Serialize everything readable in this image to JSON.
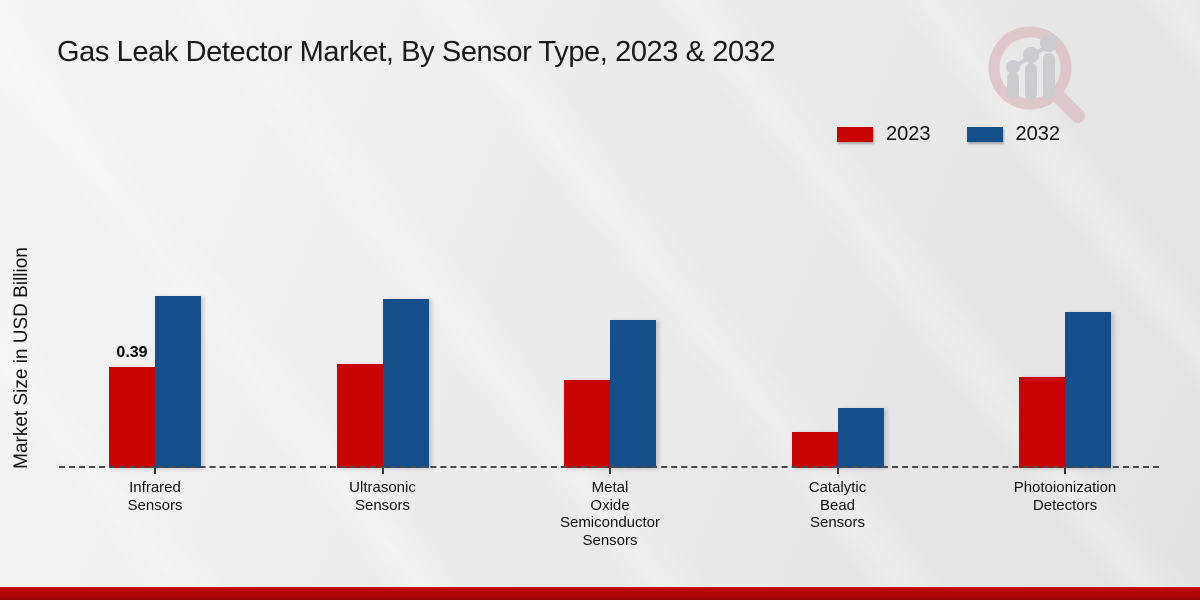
{
  "title": {
    "text": "Gas Leak Detector Market, By Sensor Type, 2023 & 2032"
  },
  "y_axis": {
    "label": "Market Size in USD Billion"
  },
  "legend": {
    "position": "top-right",
    "items": [
      {
        "label": "2023",
        "color": "#c90404"
      },
      {
        "label": "2032",
        "color": "#154f8b"
      }
    ]
  },
  "chart_data": {
    "type": "bar",
    "title": "Gas Leak Detector Market, By Sensor Type, 2023 & 2032",
    "xlabel": "",
    "ylabel": "Market Size in USD Billion",
    "categories": [
      "Infrared Sensors",
      "Ultrasonic Sensors",
      "Metal Oxide Semiconductor Sensors",
      "Catalytic Bead Sensors",
      "Photoionization Detectors"
    ],
    "category_label_lines": [
      [
        "Infrared",
        "Sensors"
      ],
      [
        "Ultrasonic",
        "Sensors"
      ],
      [
        "Metal",
        "Oxide",
        "Semiconductor",
        "Sensors"
      ],
      [
        "Catalytic",
        "Bead",
        "Sensors"
      ],
      [
        "Photoionization",
        "Detectors"
      ]
    ],
    "series": [
      {
        "name": "2023",
        "color": "#c90404",
        "values": [
          0.39,
          0.4,
          0.34,
          0.14,
          0.35
        ]
      },
      {
        "name": "2032",
        "color": "#154f8b",
        "values": [
          0.66,
          0.65,
          0.57,
          0.23,
          0.6
        ]
      }
    ],
    "annotations": [
      {
        "series": "2023",
        "category": "Infrared Sensors",
        "text": "0.39"
      }
    ],
    "ylim": [
      0,
      0.8
    ],
    "grid": false,
    "legend_position": "top-right",
    "baseline_style": "dashed"
  },
  "watermark": {
    "name": "magnifier-bar-chart-logo"
  },
  "footer": {
    "accent_color": "#b00505"
  }
}
